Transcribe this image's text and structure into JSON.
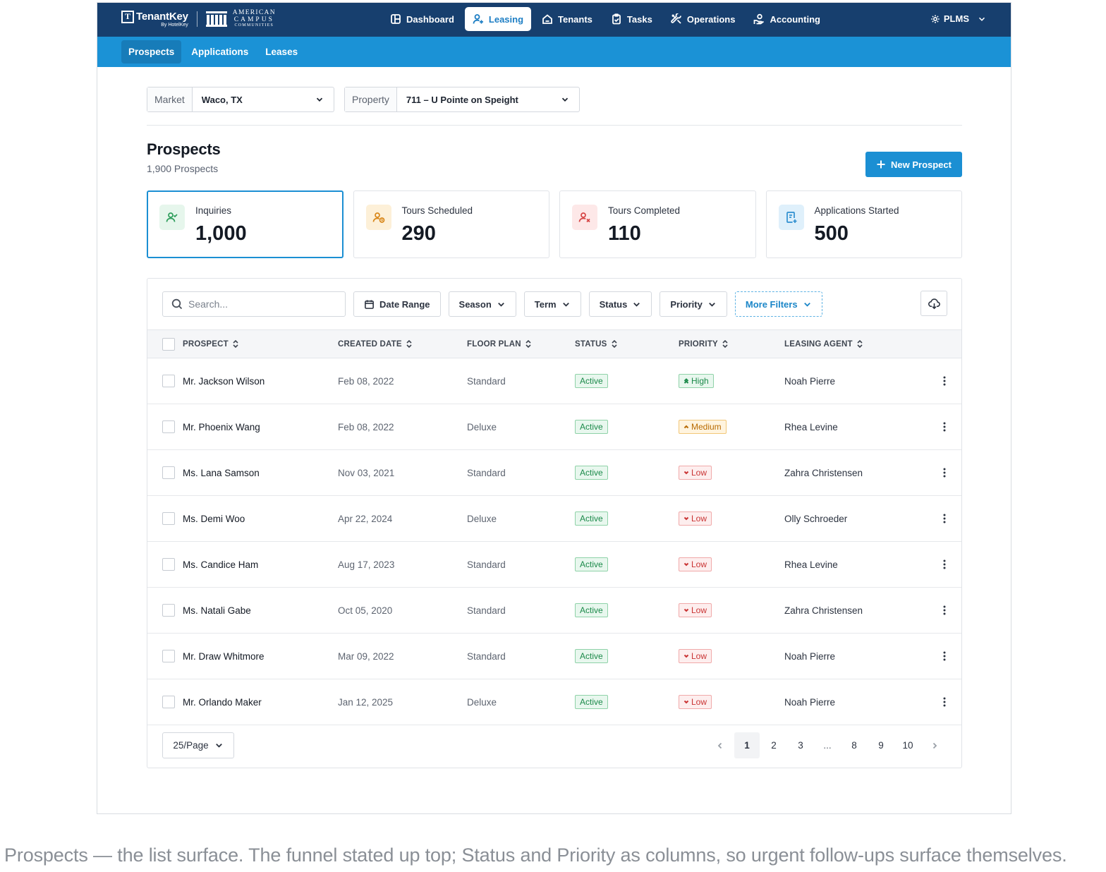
{
  "brand": {
    "tenantkey_mark": "T",
    "tenantkey_name": "TenantKey",
    "tenantkey_by": "By HotelKey",
    "partner_line1": "AMERICAN",
    "partner_line2": "CAMPUS",
    "partner_line3": "COMMUNITIES"
  },
  "nav": {
    "items": [
      {
        "label": "Dashboard",
        "icon": "layout-icon"
      },
      {
        "label": "Leasing",
        "icon": "user-plus-icon",
        "active": true
      },
      {
        "label": "Tenants",
        "icon": "home-icon"
      },
      {
        "label": "Tasks",
        "icon": "clipboard-check-icon"
      },
      {
        "label": "Operations",
        "icon": "tools-icon"
      },
      {
        "label": "Accounting",
        "icon": "money-hand-icon"
      }
    ],
    "user_label": "PLMS"
  },
  "subnav": {
    "items": [
      {
        "label": "Prospects",
        "active": true
      },
      {
        "label": "Applications"
      },
      {
        "label": "Leases"
      }
    ]
  },
  "selectors": {
    "market_label": "Market",
    "market_value": "Waco, TX",
    "property_label": "Property",
    "property_value": "711 – U Pointe on Speight"
  },
  "page": {
    "title": "Prospects",
    "subtitle": "1,900 Prospects",
    "new_button": "New Prospect"
  },
  "stats": [
    {
      "label": "Inquiries",
      "value": "1,000",
      "color": "#2e9e5b",
      "bg": "#e6f6ec",
      "icon": "user-check-icon"
    },
    {
      "label": "Tours Scheduled",
      "value": "290",
      "color": "#d9881b",
      "bg": "#fdf0d8",
      "icon": "user-clock-icon"
    },
    {
      "label": "Tours Completed",
      "value": "110",
      "color": "#d64545",
      "bg": "#fde8e8",
      "icon": "user-x-icon"
    },
    {
      "label": "Applications Started",
      "value": "500",
      "color": "#2f8fd0",
      "bg": "#dff0fb",
      "icon": "file-plus-icon"
    }
  ],
  "filters": {
    "search_placeholder": "Search...",
    "date_range": "Date Range",
    "season": "Season",
    "term": "Term",
    "status": "Status",
    "priority": "Priority",
    "more_filters": "More Filters"
  },
  "table": {
    "headers": [
      "PROSPECT",
      "CREATED DATE",
      "FLOOR PLAN",
      "STATUS",
      "PRIORITY",
      "LEASING AGENT"
    ],
    "rows": [
      {
        "prospect": "Mr. Jackson Wilson",
        "created": "Feb 08, 2022",
        "floor_plan": "Standard",
        "status": "Active",
        "priority": "High",
        "agent": "Noah Pierre"
      },
      {
        "prospect": "Mr. Phoenix Wang",
        "created": "Feb 08, 2022",
        "floor_plan": "Deluxe",
        "status": "Active",
        "priority": "Medium",
        "agent": "Rhea Levine"
      },
      {
        "prospect": "Ms. Lana Samson",
        "created": "Nov 03, 2021",
        "floor_plan": "Standard",
        "status": "Active",
        "priority": "Low",
        "agent": "Zahra Christensen"
      },
      {
        "prospect": "Ms. Demi Woo",
        "created": "Apr 22, 2024",
        "floor_plan": "Deluxe",
        "status": "Active",
        "priority": "Low",
        "agent": "Olly Schroeder"
      },
      {
        "prospect": "Ms. Candice Ham",
        "created": "Aug 17, 2023",
        "floor_plan": "Standard",
        "status": "Active",
        "priority": "Low",
        "agent": "Rhea Levine"
      },
      {
        "prospect": "Ms. Natali Gabe",
        "created": "Oct 05, 2020",
        "floor_plan": "Standard",
        "status": "Active",
        "priority": "Low",
        "agent": "Zahra Christensen"
      },
      {
        "prospect": "Mr. Draw Whitmore",
        "created": "Mar 09, 2022",
        "floor_plan": "Standard",
        "status": "Active",
        "priority": "Low",
        "agent": "Noah Pierre"
      },
      {
        "prospect": "Mr. Orlando Maker",
        "created": "Jan 12, 2025",
        "floor_plan": "Deluxe",
        "status": "Active",
        "priority": "Low",
        "agent": "Noah Pierre"
      }
    ]
  },
  "pagination": {
    "per_page": "25/Page",
    "pages": [
      "1",
      "2",
      "3",
      "...",
      "8",
      "9",
      "10"
    ],
    "current": "1"
  },
  "caption": "Prospects — the list surface. The funnel stated up top; Status and Priority as columns, so urgent follow-ups surface themselves.",
  "colors": {
    "nav_bg": "#173f6e",
    "subnav_bg": "#1b92d6",
    "accent": "#1b8fd3"
  }
}
